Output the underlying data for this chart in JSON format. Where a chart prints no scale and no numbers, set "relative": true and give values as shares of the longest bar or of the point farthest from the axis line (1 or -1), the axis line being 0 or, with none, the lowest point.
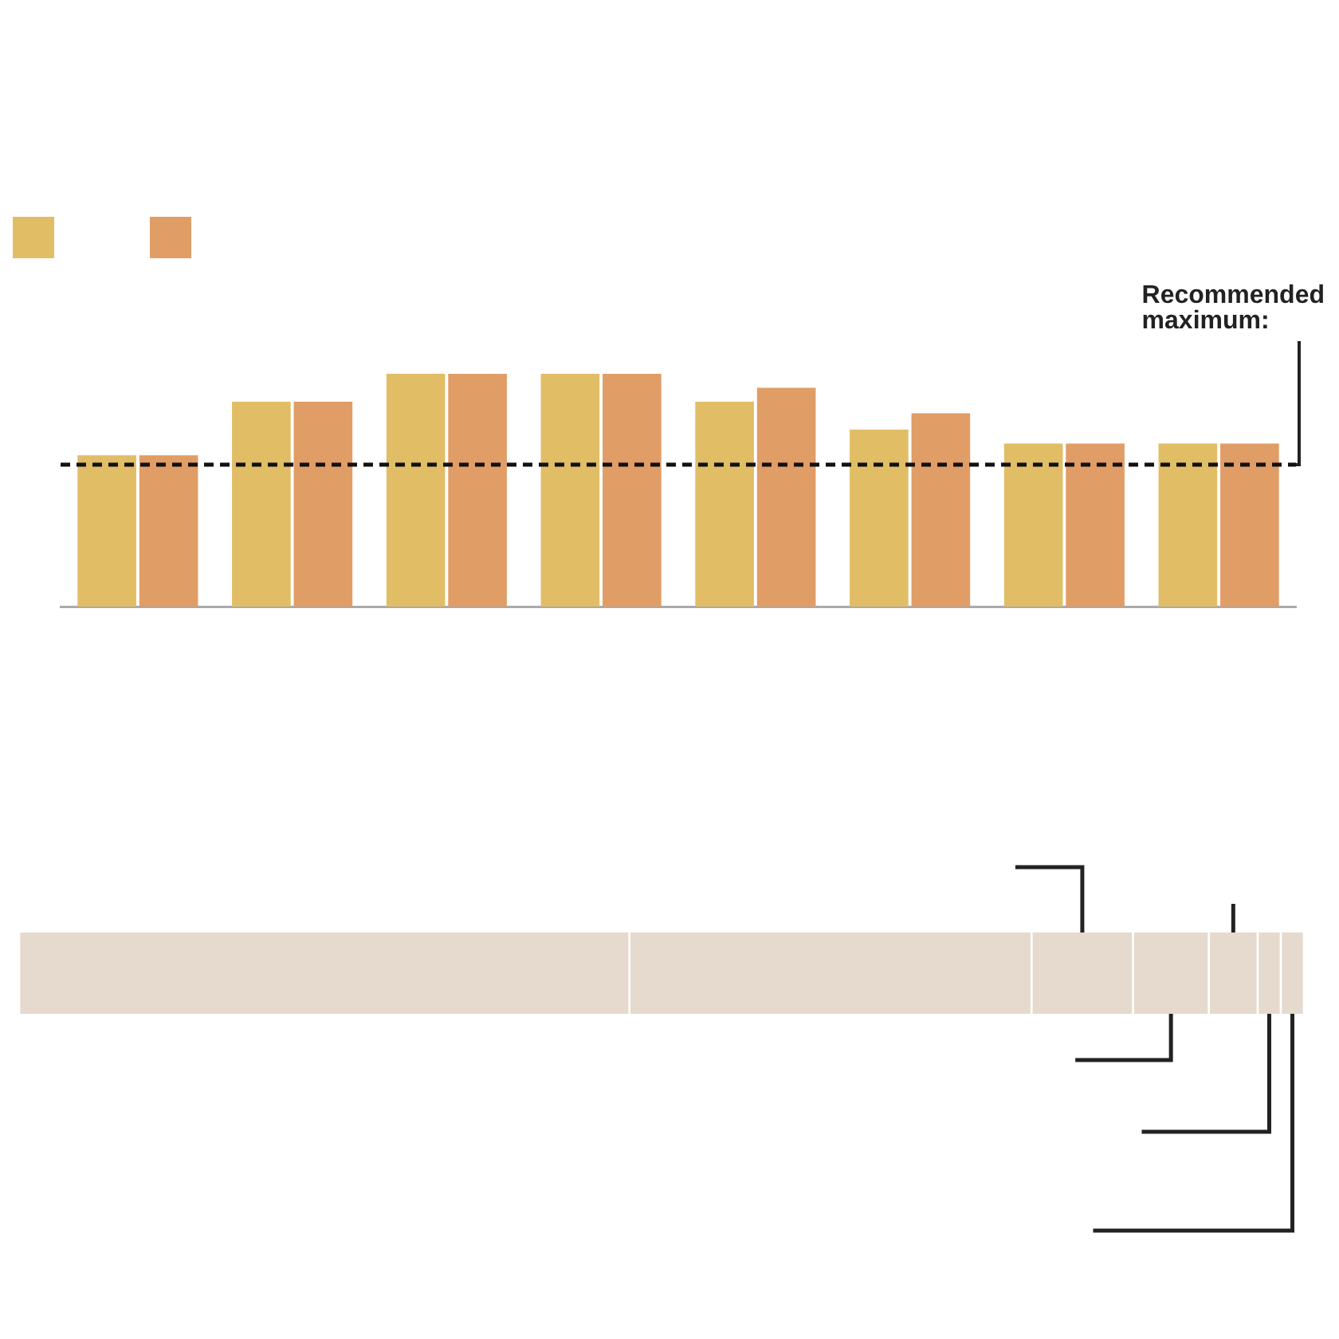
{
  "chart_data": [
    {
      "type": "bar",
      "relative": true,
      "categories": [
        null,
        null,
        null,
        null,
        null,
        null,
        null,
        null
      ],
      "series": [
        {
          "color": "#e1bd66",
          "values": [
            0.65,
            0.88,
            1,
            1,
            0.88,
            0.76,
            0.7,
            0.7
          ]
        },
        {
          "color": "#e19d66",
          "values": [
            0.65,
            0.88,
            1,
            1,
            0.94,
            0.83,
            0.7,
            0.7
          ]
        }
      ],
      "ref_lines": [
        {
          "axis": "y",
          "value": 0.61,
          "label": "Recommended maximum:",
          "color": "#111111",
          "line_style": "dashed"
        }
      ],
      "grid": false
    },
    {
      "type": "bar",
      "relative": true,
      "orientation": "horizontal",
      "stacked": true,
      "categories": [
        null
      ],
      "series": [
        {
          "color": "#e6d9ce",
          "values": [
            0.475
          ]
        },
        {
          "color": "#e6d9ce",
          "values": [
            0.313
          ]
        },
        {
          "color": "#e6d9ce",
          "values": [
            0.079
          ]
        },
        {
          "color": "#e6d9ce",
          "values": [
            0.059
          ]
        },
        {
          "color": "#e6d9ce",
          "values": [
            0.038
          ]
        },
        {
          "color": "#e6d9ce",
          "values": [
            0.018
          ]
        },
        {
          "color": "#e6d9ce",
          "values": [
            0.018
          ]
        }
      ],
      "legend": false,
      "grid": false
    }
  ]
}
